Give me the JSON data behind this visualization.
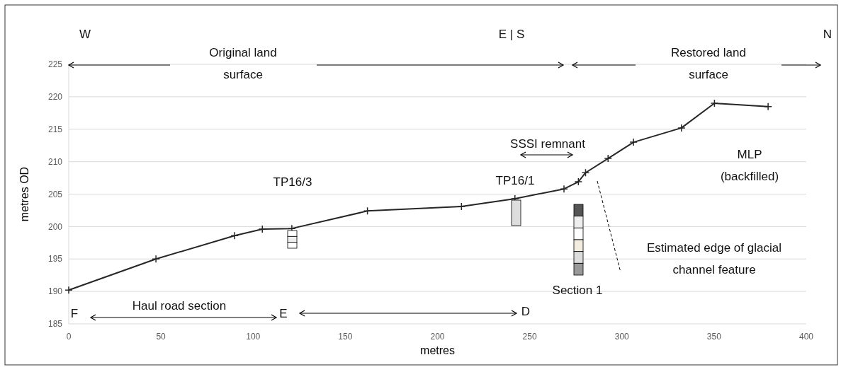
{
  "chart_data": {
    "type": "line",
    "xlabel": "metres",
    "ylabel": "metres OD",
    "x": [
      0,
      47.3,
      90,
      105,
      121,
      162,
      213,
      242,
      268.6,
      276.4,
      280.3,
      292.5,
      306.3,
      332.3,
      350.2,
      379.3
    ],
    "series": [
      {
        "color": "#262626",
        "values": [
          190.2,
          195.0,
          198.6,
          199.6,
          199.7,
          202.4,
          203.1,
          204.3,
          205.8,
          206.9,
          208.3,
          210.5,
          213.0,
          215.2,
          219.0,
          218.5
        ]
      }
    ],
    "xlim": [
      0,
      400
    ],
    "xticks": [
      0,
      50,
      100,
      150,
      200,
      250,
      300,
      350,
      400
    ],
    "ylim": [
      185,
      225
    ],
    "yticks": [
      185,
      190,
      195,
      200,
      205,
      210,
      215,
      220,
      225
    ],
    "grid": "y",
    "marker": "cross",
    "line_style": "solid",
    "annotations": [
      "W",
      "E | S",
      "N",
      "Original land\nsurface",
      "Restored land\nsurface",
      "TP16/3",
      "TP16/1",
      "SSSI remnant",
      "MLP\n(backfilled)",
      "Estimated edge of glacial\nchannel feature",
      "Section 1",
      "F",
      "Haul road section",
      "E",
      "D"
    ]
  }
}
